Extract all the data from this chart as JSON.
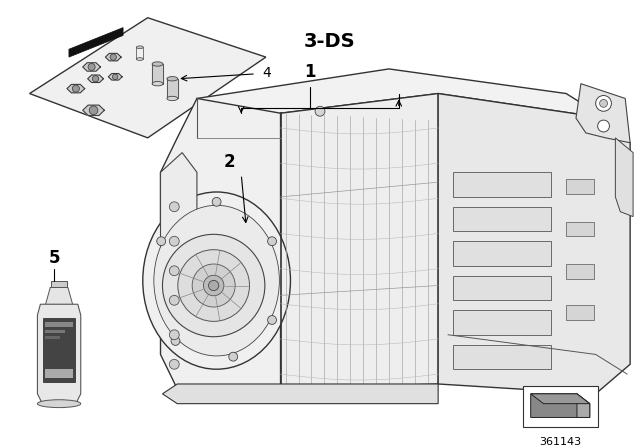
{
  "bg_color": "#ffffff",
  "label_3ds": "3-DS",
  "label_1": "1",
  "label_2": "2",
  "label_4": "4",
  "label_5": "5",
  "diagram_number": "361143",
  "font_color": "#000000",
  "line_color": "#000000",
  "label_3ds_fontsize": 12,
  "label_fontsize": 10,
  "diagram_num_fontsize": 8,
  "figsize": [
    6.4,
    4.48
  ],
  "dpi": 100
}
